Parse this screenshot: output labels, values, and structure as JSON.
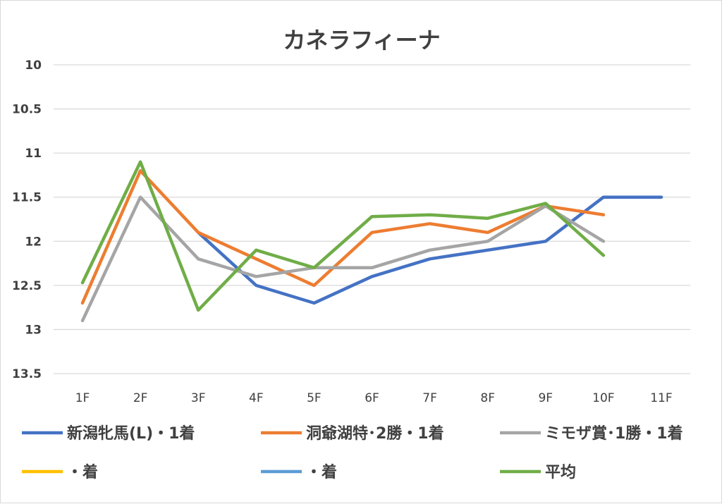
{
  "chart_data": {
    "type": "line",
    "title": "カネラフィーナ",
    "categories": [
      "1F",
      "2F",
      "3F",
      "4F",
      "5F",
      "6F",
      "7F",
      "8F",
      "9F",
      "10F",
      "11F"
    ],
    "y_reversed": true,
    "ylim": [
      10,
      13.5
    ],
    "yticks": [
      10,
      10.5,
      11,
      11.5,
      12,
      12.5,
      13,
      13.5
    ],
    "ytick_labels": [
      "10",
      "10.5",
      "11",
      "11.5",
      "12",
      "12.5",
      "13",
      "13.5"
    ],
    "grid": true,
    "legend_position": "bottom",
    "series": [
      {
        "name": "新潟牝馬(L)・1着",
        "color": "#4472c4",
        "values": [
          null,
          null,
          11.9,
          12.5,
          12.7,
          12.4,
          12.2,
          12.1,
          12.0,
          11.5,
          11.5
        ]
      },
      {
        "name": "洞爺湖特･2勝・1着",
        "color": "#ed7d31",
        "values": [
          12.7,
          11.2,
          11.9,
          12.2,
          12.5,
          11.9,
          11.8,
          11.9,
          11.6,
          11.7,
          null
        ]
      },
      {
        "name": "ミモザ賞･1勝・1着",
        "color": "#a5a5a5",
        "values": [
          12.9,
          11.5,
          12.2,
          12.4,
          12.3,
          12.3,
          12.1,
          12.0,
          11.6,
          12.0,
          null
        ]
      },
      {
        "name": "・着",
        "color": "#ffc000",
        "values": [
          null,
          null,
          null,
          null,
          null,
          null,
          null,
          null,
          null,
          null,
          null
        ]
      },
      {
        "name": "・着",
        "color": "#5b9bd5",
        "values": [
          null,
          null,
          null,
          null,
          null,
          null,
          null,
          null,
          null,
          null,
          null
        ]
      },
      {
        "name": "平均",
        "color": "#70ad47",
        "values": [
          12.47,
          11.1,
          12.78,
          12.1,
          12.3,
          11.72,
          11.7,
          11.74,
          11.57,
          12.16,
          null
        ]
      }
    ]
  }
}
